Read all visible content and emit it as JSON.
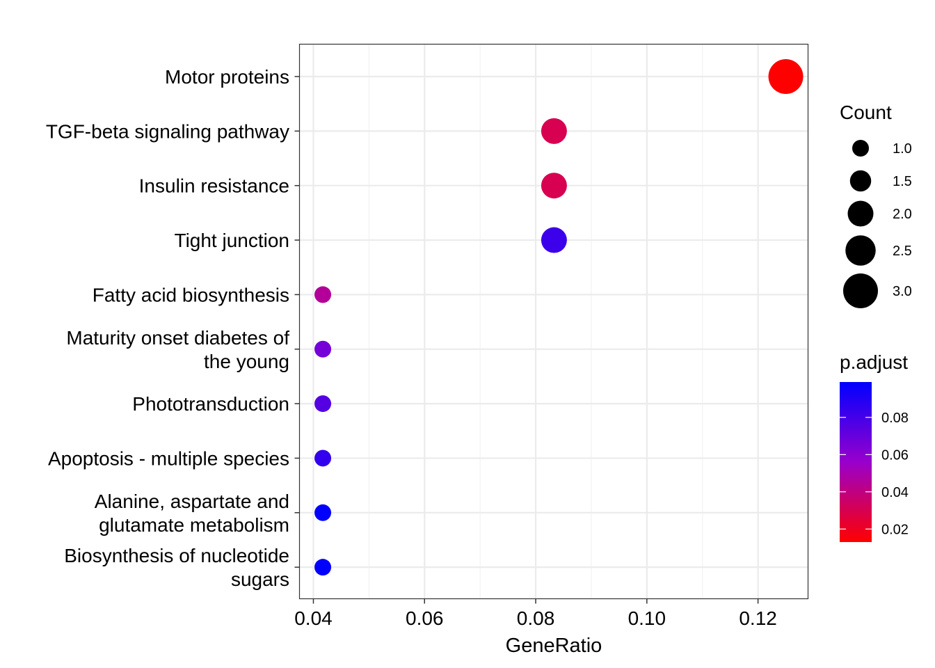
{
  "chart_data": {
    "type": "scatter",
    "title": "",
    "xlabel": "GeneRatio",
    "ylabel": "",
    "xlim": [
      0.0375,
      0.129
    ],
    "xticks": [
      "0.04",
      "0.06",
      "0.08",
      "0.10",
      "0.12"
    ],
    "xtick_values": [
      0.04,
      0.06,
      0.08,
      0.1,
      0.12
    ],
    "grid": true,
    "legend_placement": "right",
    "categories": [
      "Motor proteins",
      "TGF-beta signaling pathway",
      "Insulin resistance",
      "Tight junction",
      "Fatty acid biosynthesis",
      "Maturity onset diabetes of the young",
      "Phototransduction",
      "Apoptosis - multiple species",
      "Alanine, aspartate and glutamate metabolism",
      "Biosynthesis of nucleotide sugars"
    ],
    "category_lines": [
      [
        "Motor proteins"
      ],
      [
        "TGF-beta signaling pathway"
      ],
      [
        "Insulin resistance"
      ],
      [
        "Tight junction"
      ],
      [
        "Fatty acid biosynthesis"
      ],
      [
        "Maturity onset diabetes of",
        "the young"
      ],
      [
        "Phototransduction"
      ],
      [
        "Apoptosis - multiple species"
      ],
      [
        "Alanine, aspartate and",
        "glutamate metabolism"
      ],
      [
        "Biosynthesis of nucleotide",
        "sugars"
      ]
    ],
    "points": [
      {
        "term": "Motor proteins",
        "gene_ratio": 0.125,
        "count": 3,
        "p_adjust": 0.013
      },
      {
        "term": "TGF-beta signaling pathway",
        "gene_ratio": 0.0833,
        "count": 2,
        "p_adjust": 0.03
      },
      {
        "term": "Insulin resistance",
        "gene_ratio": 0.0833,
        "count": 2,
        "p_adjust": 0.03
      },
      {
        "term": "Tight junction",
        "gene_ratio": 0.0833,
        "count": 2,
        "p_adjust": 0.082
      },
      {
        "term": "Fatty acid biosynthesis",
        "gene_ratio": 0.0417,
        "count": 1,
        "p_adjust": 0.045
      },
      {
        "term": "Maturity onset diabetes of the young",
        "gene_ratio": 0.0417,
        "count": 1,
        "p_adjust": 0.066
      },
      {
        "term": "Phototransduction",
        "gene_ratio": 0.0417,
        "count": 1,
        "p_adjust": 0.075
      },
      {
        "term": "Apoptosis - multiple species",
        "gene_ratio": 0.0417,
        "count": 1,
        "p_adjust": 0.085
      },
      {
        "term": "Alanine, aspartate and glutamate metabolism",
        "gene_ratio": 0.0417,
        "count": 1,
        "p_adjust": 0.099
      },
      {
        "term": "Biosynthesis of nucleotide sugars",
        "gene_ratio": 0.0417,
        "count": 1,
        "p_adjust": 0.099
      }
    ],
    "size_legend": {
      "title": "Count",
      "values": [
        1.0,
        1.5,
        2.0,
        2.5,
        3.0
      ],
      "labels": [
        "1.0",
        "1.5",
        "2.0",
        "2.5",
        "3.0"
      ]
    },
    "color_legend": {
      "title": "p.adjust",
      "low_color": "#ff0000",
      "mid_color": "#9900cc",
      "high_color": "#0000ff",
      "range": [
        0.013,
        0.099
      ],
      "tick_values": [
        0.02,
        0.04,
        0.06,
        0.08
      ],
      "tick_labels": [
        "0.02",
        "0.04",
        "0.06",
        "0.08"
      ]
    }
  }
}
